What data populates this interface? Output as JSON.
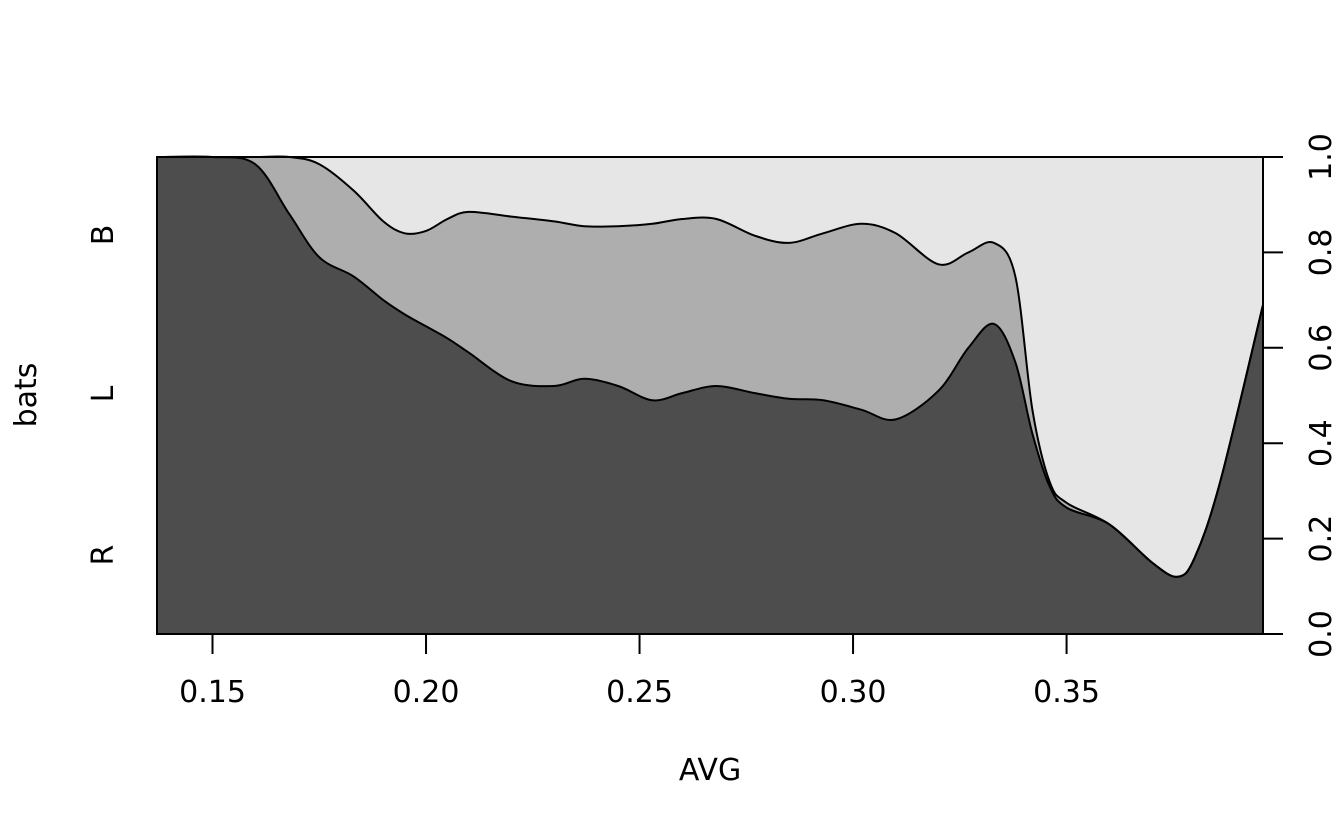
{
  "chart_data": {
    "type": "area",
    "subtype": "conditional density plot",
    "xlabel": "AVG",
    "ylabel": "bats",
    "xlim": [
      0.137,
      0.396
    ],
    "ylim": [
      0,
      1
    ],
    "x_ticks": [
      0.15,
      0.2,
      0.25,
      0.3,
      0.35
    ],
    "x_tick_labels": [
      "0.15",
      "0.20",
      "0.25",
      "0.30",
      "0.35"
    ],
    "y_ticks_right": [
      0.0,
      0.2,
      0.4,
      0.6,
      0.8,
      1.0
    ],
    "y_tick_labels_right": [
      "0.0",
      "0.2",
      "0.4",
      "0.6",
      "0.8",
      "1.0"
    ],
    "grid": false,
    "category_labels_left": [
      "R",
      "L",
      "B"
    ],
    "series": [
      {
        "name": "R",
        "color": "#4d4d4d"
      },
      {
        "name": "L",
        "color": "#aeaeae"
      },
      {
        "name": "B",
        "color": "#e6e6e6"
      }
    ],
    "x": [
      0.137,
      0.15,
      0.16,
      0.168,
      0.175,
      0.183,
      0.19,
      0.195,
      0.2,
      0.205,
      0.21,
      0.22,
      0.23,
      0.237,
      0.245,
      0.253,
      0.26,
      0.268,
      0.277,
      0.285,
      0.293,
      0.302,
      0.31,
      0.32,
      0.327,
      0.333,
      0.338,
      0.342,
      0.346,
      0.35,
      0.36,
      0.37,
      0.376,
      0.38,
      0.386,
      0.396
    ],
    "boundary_R_L": [
      1.0,
      1.0,
      0.985,
      0.88,
      0.79,
      0.75,
      0.7,
      0.67,
      0.645,
      0.62,
      0.59,
      0.53,
      0.52,
      0.535,
      0.52,
      0.49,
      0.505,
      0.52,
      0.505,
      0.493,
      0.49,
      0.47,
      0.45,
      0.51,
      0.6,
      0.65,
      0.57,
      0.42,
      0.31,
      0.265,
      0.23,
      0.15,
      0.12,
      0.16,
      0.32,
      0.69
    ],
    "boundary_L_B": [
      1.0,
      1.0,
      1.0,
      1.0,
      0.985,
      0.93,
      0.865,
      0.84,
      0.845,
      0.87,
      0.885,
      0.875,
      0.865,
      0.855,
      0.855,
      0.86,
      0.87,
      0.87,
      0.835,
      0.82,
      0.84,
      0.86,
      0.84,
      0.775,
      0.8,
      0.82,
      0.75,
      0.47,
      0.32,
      0.275,
      0.23,
      0.15,
      0.12,
      0.16,
      0.32,
      0.69
    ]
  }
}
